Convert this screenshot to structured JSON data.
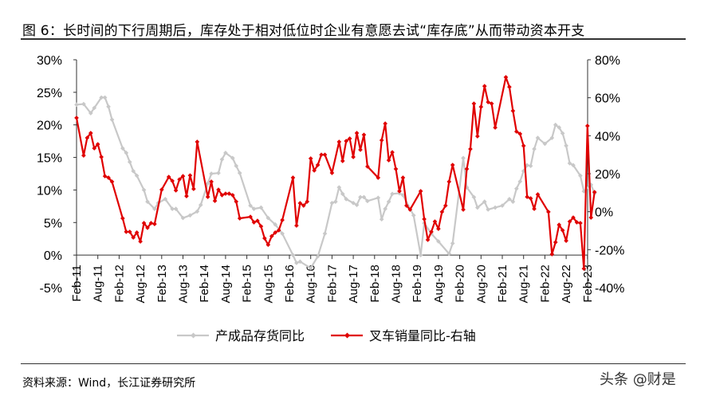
{
  "title": "图 6：长时间的下行周期后，库存处于相对低位时企业有意愿去试“库存底”从而带动资本开支",
  "source": "资料来源：Wind，长江证券研究所",
  "watermark": "头条 @财是",
  "chart_data": {
    "type": "line",
    "title": "",
    "grid": false,
    "legend_position": "bottom",
    "x_ticks": [
      "Feb-11",
      "Aug-11",
      "Feb-12",
      "Aug-12",
      "Feb-13",
      "Aug-13",
      "Feb-14",
      "Aug-14",
      "Feb-15",
      "Aug-15",
      "Feb-16",
      "Aug-16",
      "Feb-17",
      "Aug-17",
      "Feb-18",
      "Aug-18",
      "Feb-19",
      "Aug-19",
      "Feb-20",
      "Aug-20",
      "Feb-21",
      "Aug-21",
      "Feb-22",
      "Aug-22",
      "Feb-23"
    ],
    "y_left": {
      "min": -5,
      "max": 30,
      "step": 5,
      "ticks": [
        "-5%",
        "0%",
        "5%",
        "10%",
        "15%",
        "20%",
        "25%",
        "30%"
      ]
    },
    "y_right": {
      "min": -40,
      "max": 80,
      "step": 20,
      "ticks": [
        "-40%",
        "-20%",
        "0%",
        "20%",
        "40%",
        "60%",
        "80%"
      ]
    },
    "series": [
      {
        "name": "产成品存货同比",
        "axis": "left",
        "color": "#c8c8c8",
        "points": [
          [
            "2011-02",
            23.1
          ],
          [
            "2011-04",
            23.2
          ],
          [
            "2011-06",
            21.8
          ],
          [
            "2011-07",
            22.6
          ],
          [
            "2011-09",
            24.2
          ],
          [
            "2011-10",
            24.2
          ],
          [
            "2011-11",
            22.8
          ],
          [
            "2011-12",
            20.8
          ],
          [
            "2012-03",
            16.4
          ],
          [
            "2012-04",
            15.7
          ],
          [
            "2012-05",
            14.3
          ],
          [
            "2012-06",
            12.9
          ],
          [
            "2012-07",
            12.2
          ],
          [
            "2012-09",
            10.0
          ],
          [
            "2012-10",
            8.2
          ],
          [
            "2012-12",
            7.1
          ],
          [
            "2013-01",
            8.0
          ],
          [
            "2013-03",
            8.6
          ],
          [
            "2013-05",
            7.1
          ],
          [
            "2013-06",
            7.1
          ],
          [
            "2013-08",
            5.7
          ],
          [
            "2013-10",
            6.1
          ],
          [
            "2013-12",
            6.7
          ],
          [
            "2014-01",
            7.7
          ],
          [
            "2014-03",
            11.0
          ],
          [
            "2014-04",
            12.5
          ],
          [
            "2014-06",
            12.6
          ],
          [
            "2014-07",
            14.7
          ],
          [
            "2014-08",
            15.7
          ],
          [
            "2014-10",
            14.9
          ],
          [
            "2014-11",
            13.7
          ],
          [
            "2014-12",
            12.6
          ],
          [
            "2015-03",
            7.6
          ],
          [
            "2015-04",
            7.1
          ],
          [
            "2015-06",
            7.3
          ],
          [
            "2015-08",
            5.7
          ],
          [
            "2015-10",
            4.7
          ],
          [
            "2015-12",
            3.3
          ],
          [
            "2016-03",
            0.0
          ],
          [
            "2016-04",
            -1.2
          ],
          [
            "2016-05",
            -1.0
          ],
          [
            "2016-08",
            -2.0
          ],
          [
            "2016-10",
            -0.2
          ],
          [
            "2016-12",
            3.3
          ],
          [
            "2017-02",
            8.0
          ],
          [
            "2017-03",
            8.2
          ],
          [
            "2017-04",
            10.4
          ],
          [
            "2017-05",
            9.4
          ],
          [
            "2017-06",
            8.6
          ],
          [
            "2017-08",
            8.0
          ],
          [
            "2017-09",
            7.7
          ],
          [
            "2017-10",
            8.9
          ],
          [
            "2017-11",
            8.9
          ],
          [
            "2017-12",
            8.3
          ],
          [
            "2018-03",
            8.8
          ],
          [
            "2018-04",
            5.5
          ],
          [
            "2018-05",
            7.1
          ],
          [
            "2018-06",
            8.2
          ],
          [
            "2018-07",
            9.4
          ],
          [
            "2018-09",
            9.5
          ],
          [
            "2018-10",
            9.2
          ],
          [
            "2019-01",
            6.1
          ],
          [
            "2019-03",
            0.0
          ],
          [
            "2019-04",
            4.9
          ],
          [
            "2019-06",
            3.3
          ],
          [
            "2019-08",
            2.1
          ],
          [
            "2019-11",
            0.2
          ],
          [
            "2019-12",
            1.8
          ],
          [
            "2020-03",
            14.9
          ],
          [
            "2020-04",
            10.4
          ],
          [
            "2020-06",
            8.9
          ],
          [
            "2020-07",
            7.3
          ],
          [
            "2020-09",
            8.2
          ],
          [
            "2020-10",
            7.0
          ],
          [
            "2020-12",
            7.3
          ],
          [
            "2021-02",
            7.6
          ],
          [
            "2021-04",
            8.6
          ],
          [
            "2021-05",
            8.2
          ],
          [
            "2021-06",
            10.2
          ],
          [
            "2021-07",
            11.3
          ],
          [
            "2021-08",
            12.9
          ],
          [
            "2021-09",
            13.8
          ],
          [
            "2021-10",
            13.7
          ],
          [
            "2021-11",
            16.3
          ],
          [
            "2021-12",
            18.0
          ],
          [
            "2022-02",
            17.1
          ],
          [
            "2022-04",
            18.0
          ],
          [
            "2022-05",
            20.0
          ],
          [
            "2022-06",
            19.6
          ],
          [
            "2022-07",
            18.7
          ],
          [
            "2022-08",
            16.8
          ],
          [
            "2022-09",
            14.1
          ],
          [
            "2022-10",
            13.8
          ],
          [
            "2022-12",
            12.2
          ],
          [
            "2023-01",
            9.8
          ],
          [
            "2023-03",
            10.8
          ],
          [
            "2023-04",
            9.5
          ]
        ]
      },
      {
        "name": "叉车销量同比-右轴",
        "axis": "right",
        "color": "#e00000",
        "points": [
          [
            "2011-02",
            49.4
          ],
          [
            "2011-04",
            29.6
          ],
          [
            "2011-05",
            38.9
          ],
          [
            "2011-06",
            41.4
          ],
          [
            "2011-07",
            33.4
          ],
          [
            "2011-08",
            35.5
          ],
          [
            "2011-09",
            28.8
          ],
          [
            "2011-10",
            18.7
          ],
          [
            "2011-11",
            17.9
          ],
          [
            "2011-12",
            15.8
          ],
          [
            "2012-03",
            -3.5
          ],
          [
            "2012-04",
            -10.6
          ],
          [
            "2012-05",
            -10.6
          ],
          [
            "2012-06",
            -13.6
          ],
          [
            "2012-07",
            -11.0
          ],
          [
            "2012-08",
            -15.7
          ],
          [
            "2012-09",
            -6.0
          ],
          [
            "2012-10",
            -8.5
          ],
          [
            "2012-11",
            -6.0
          ],
          [
            "2012-12",
            -6.5
          ],
          [
            "2013-02",
            11.6
          ],
          [
            "2013-04",
            18.3
          ],
          [
            "2013-05",
            16.2
          ],
          [
            "2013-06",
            11.2
          ],
          [
            "2013-07",
            17.0
          ],
          [
            "2013-08",
            18.7
          ],
          [
            "2013-09",
            8.2
          ],
          [
            "2013-10",
            19.1
          ],
          [
            "2013-11",
            12.0
          ],
          [
            "2013-12",
            36.8
          ],
          [
            "2014-03",
            7.8
          ],
          [
            "2014-04",
            15.8
          ],
          [
            "2014-05",
            5.7
          ],
          [
            "2014-06",
            11.6
          ],
          [
            "2014-07",
            8.7
          ],
          [
            "2014-08",
            9.5
          ],
          [
            "2014-09",
            9.5
          ],
          [
            "2014-10",
            8.7
          ],
          [
            "2014-11",
            5.3
          ],
          [
            "2014-12",
            -3.5
          ],
          [
            "2015-03",
            -2.7
          ],
          [
            "2015-04",
            -5.6
          ],
          [
            "2015-05",
            -4.8
          ],
          [
            "2015-06",
            -7.7
          ],
          [
            "2015-07",
            -14.0
          ],
          [
            "2015-08",
            -17.4
          ],
          [
            "2015-09",
            -12.9
          ],
          [
            "2015-10",
            -11.0
          ],
          [
            "2015-11",
            -9.8
          ],
          [
            "2015-12",
            -4.4
          ],
          [
            "2016-03",
            17.9
          ],
          [
            "2016-04",
            -7.3
          ],
          [
            "2016-05",
            4.5
          ],
          [
            "2016-06",
            3.2
          ],
          [
            "2016-07",
            5.3
          ],
          [
            "2016-08",
            28.0
          ],
          [
            "2016-09",
            21.7
          ],
          [
            "2016-10",
            24.6
          ],
          [
            "2016-11",
            30.0
          ],
          [
            "2016-12",
            30.0
          ],
          [
            "2017-02",
            20.4
          ],
          [
            "2017-04",
            36.8
          ],
          [
            "2017-05",
            26.7
          ],
          [
            "2017-06",
            37.2
          ],
          [
            "2017-07",
            38.5
          ],
          [
            "2017-08",
            28.8
          ],
          [
            "2017-09",
            41.4
          ],
          [
            "2017-10",
            32.6
          ],
          [
            "2017-11",
            40.5
          ],
          [
            "2017-12",
            23.8
          ],
          [
            "2018-03",
            17.9
          ],
          [
            "2018-04",
            37.6
          ],
          [
            "2018-05",
            46.4
          ],
          [
            "2018-06",
            27.1
          ],
          [
            "2018-07",
            31.3
          ],
          [
            "2018-08",
            22.5
          ],
          [
            "2018-09",
            10.8
          ],
          [
            "2018-10",
            17.9
          ],
          [
            "2018-11",
            3.2
          ],
          [
            "2018-12",
            1.1
          ],
          [
            "2019-03",
            10.8
          ],
          [
            "2019-04",
            -3.9
          ],
          [
            "2019-05",
            -14.8
          ],
          [
            "2019-06",
            -10.6
          ],
          [
            "2019-07",
            -5.2
          ],
          [
            "2019-08",
            -9.0
          ],
          [
            "2019-09",
            -0.1
          ],
          [
            "2019-10",
            3.2
          ],
          [
            "2019-11",
            15.8
          ],
          [
            "2019-12",
            24.6
          ],
          [
            "2020-03",
            1.1
          ],
          [
            "2020-04",
            22.5
          ],
          [
            "2020-05",
            33.0
          ],
          [
            "2020-06",
            56.9
          ],
          [
            "2020-07",
            39.7
          ],
          [
            "2020-08",
            55.2
          ],
          [
            "2020-09",
            66.1
          ],
          [
            "2020-10",
            57.7
          ],
          [
            "2020-11",
            56.9
          ],
          [
            "2020-12",
            44.3
          ],
          [
            "2021-03",
            70.8
          ],
          [
            "2021-04",
            65.7
          ],
          [
            "2021-05",
            53.1
          ],
          [
            "2021-06",
            42.2
          ],
          [
            "2021-07",
            41.0
          ],
          [
            "2021-08",
            34.7
          ],
          [
            "2021-09",
            7.8
          ],
          [
            "2021-10",
            7.0
          ],
          [
            "2021-11",
            1.5
          ],
          [
            "2021-12",
            9.1
          ],
          [
            "2022-03",
            -0.1
          ],
          [
            "2022-04",
            -22.4
          ],
          [
            "2022-05",
            -16.1
          ],
          [
            "2022-06",
            -6.9
          ],
          [
            "2022-07",
            -9.8
          ],
          [
            "2022-08",
            -15.3
          ],
          [
            "2022-09",
            -5.2
          ],
          [
            "2022-10",
            -3.1
          ],
          [
            "2022-11",
            -5.6
          ],
          [
            "2022-12",
            -6.0
          ],
          [
            "2023-01",
            -30.0
          ],
          [
            "2023-02",
            45.2
          ],
          [
            "2023-03",
            -3.1
          ],
          [
            "2023-04",
            10.3
          ]
        ]
      }
    ]
  }
}
